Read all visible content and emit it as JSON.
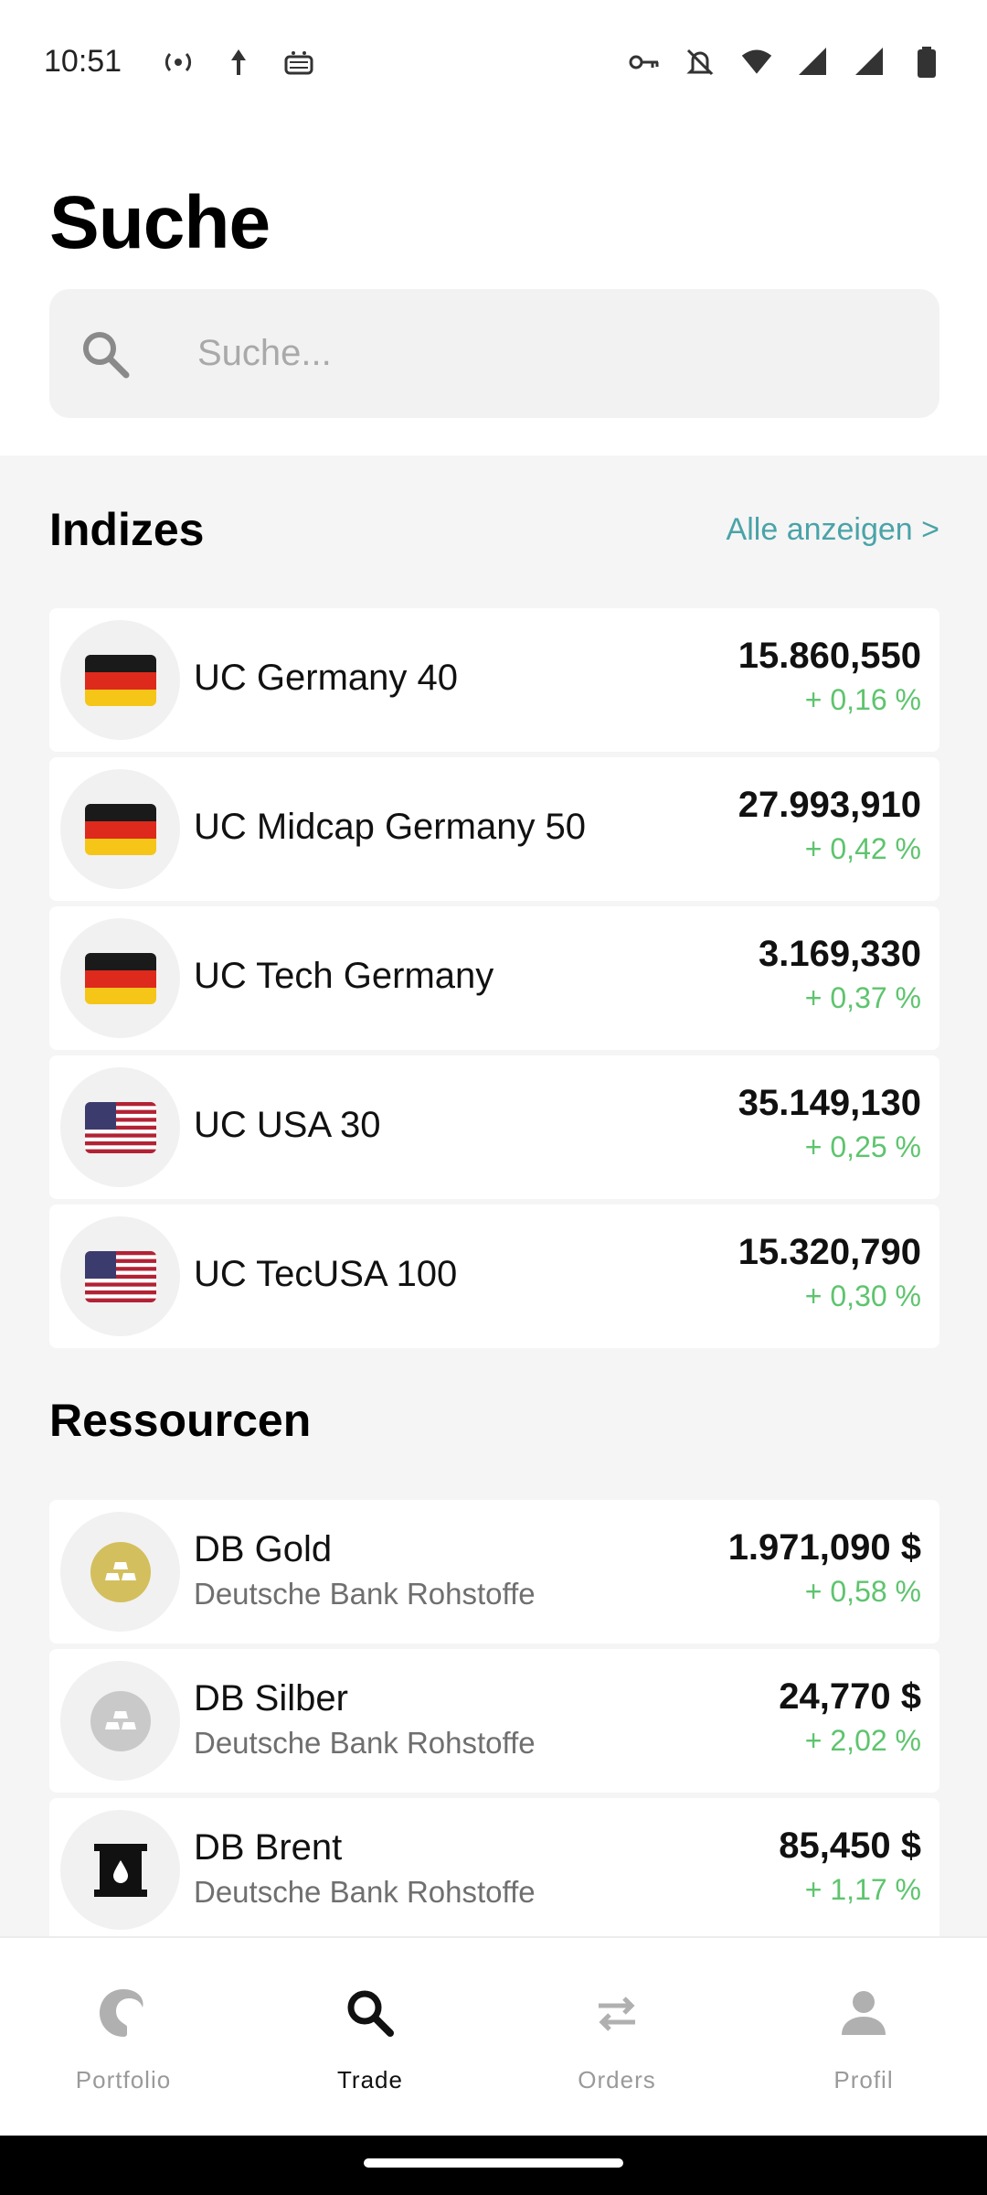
{
  "status_bar": {
    "time": "10:51"
  },
  "header": {
    "title": "Suche",
    "search_placeholder": "Suche..."
  },
  "indices": {
    "title": "Indizes",
    "show_all": "Alle anzeigen >",
    "items": [
      {
        "name": "UC Germany 40",
        "price": "15.860,550",
        "change": "+ 0,16 %",
        "flag": "de"
      },
      {
        "name": "UC Midcap Germany 50",
        "price": "27.993,910",
        "change": "+ 0,42 %",
        "flag": "de"
      },
      {
        "name": "UC Tech Germany",
        "price": "3.169,330",
        "change": "+ 0,37 %",
        "flag": "de"
      },
      {
        "name": "UC USA 30",
        "price": "35.149,130",
        "change": "+ 0,25 %",
        "flag": "us"
      },
      {
        "name": "UC TecUSA 100",
        "price": "15.320,790",
        "change": "+ 0,30 %",
        "flag": "us"
      }
    ]
  },
  "resources": {
    "title": "Ressourcen",
    "items": [
      {
        "name": "DB Gold",
        "subtitle": "Deutsche Bank Rohstoffe",
        "price": "1.971,090 $",
        "change": "+ 0,58 %",
        "icon": "gold-bars-icon",
        "color": "#d4bf5e"
      },
      {
        "name": "DB Silber",
        "subtitle": "Deutsche Bank Rohstoffe",
        "price": "24,770 $",
        "change": "+ 2,02 %",
        "icon": "silver-bars-icon",
        "color": "#c9c9c9"
      },
      {
        "name": "DB Brent",
        "subtitle": "Deutsche Bank Rohstoffe",
        "price": "85,450 $",
        "change": "+ 1,17 %",
        "icon": "oil-barrel-icon",
        "color": "#111111"
      }
    ]
  },
  "bottom_nav": {
    "items": [
      {
        "label": "Portfolio",
        "icon": "portfolio-icon",
        "active": false
      },
      {
        "label": "Trade",
        "icon": "search-icon",
        "active": true
      },
      {
        "label": "Orders",
        "icon": "swap-arrows-icon",
        "active": false
      },
      {
        "label": "Profil",
        "icon": "person-icon",
        "active": false
      }
    ]
  },
  "colors": {
    "accent_link": "#4aa3a8",
    "positive_change": "#5ec46e"
  }
}
